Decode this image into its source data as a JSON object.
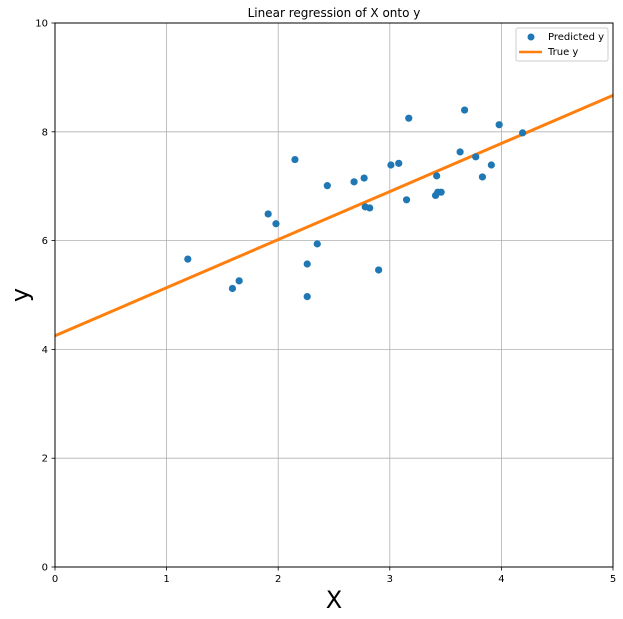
{
  "chart_data": {
    "type": "scatter",
    "title": "Linear regression of X onto y",
    "xlabel": "X",
    "ylabel": "y",
    "xlim": [
      0,
      5
    ],
    "ylim": [
      0,
      10
    ],
    "xticks": [
      "0",
      "1",
      "2",
      "3",
      "4",
      "5"
    ],
    "yticks": [
      "0",
      "2",
      "4",
      "6",
      "8",
      "10"
    ],
    "grid": true,
    "legend_position": "top-right",
    "series": [
      {
        "name": "Predicted y",
        "kind": "scatter",
        "color": "#1f77b4",
        "points": [
          [
            1.19,
            5.66
          ],
          [
            1.59,
            5.12
          ],
          [
            1.65,
            5.26
          ],
          [
            1.91,
            6.49
          ],
          [
            1.98,
            6.31
          ],
          [
            2.15,
            7.49
          ],
          [
            2.26,
            5.57
          ],
          [
            2.26,
            4.97
          ],
          [
            2.35,
            5.94
          ],
          [
            2.44,
            7.01
          ],
          [
            2.68,
            7.08
          ],
          [
            2.77,
            7.15
          ],
          [
            2.78,
            6.62
          ],
          [
            2.82,
            6.6
          ],
          [
            2.9,
            5.46
          ],
          [
            3.01,
            7.39
          ],
          [
            3.08,
            7.42
          ],
          [
            3.15,
            6.75
          ],
          [
            3.17,
            8.25
          ],
          [
            3.41,
            6.83
          ],
          [
            3.42,
            7.19
          ],
          [
            3.43,
            6.89
          ],
          [
            3.46,
            6.89
          ],
          [
            3.63,
            7.63
          ],
          [
            3.67,
            8.4
          ],
          [
            3.77,
            7.54
          ],
          [
            3.83,
            7.17
          ],
          [
            3.91,
            7.39
          ],
          [
            3.98,
            8.13
          ],
          [
            4.19,
            7.98
          ]
        ]
      },
      {
        "name": "True y",
        "kind": "line",
        "color": "#ff7f0e",
        "points": [
          [
            0,
            4.25
          ],
          [
            5,
            8.67
          ]
        ]
      }
    ]
  }
}
